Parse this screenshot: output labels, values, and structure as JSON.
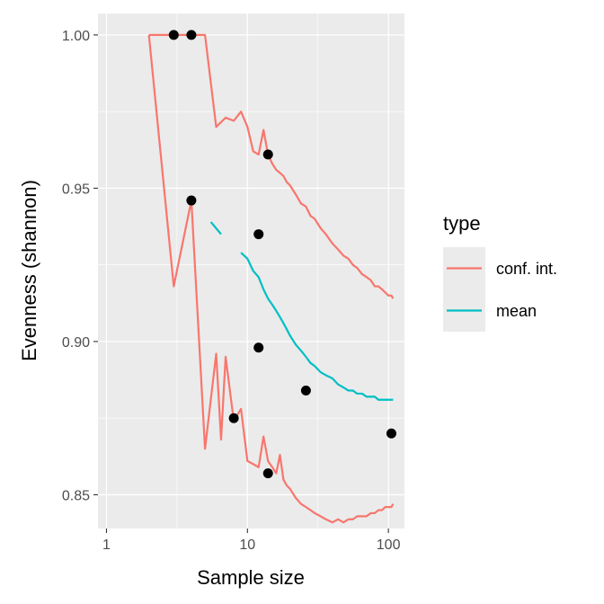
{
  "chart_data": {
    "type": "line",
    "xlabel": "Sample size",
    "ylabel": "Evenness (shannon)",
    "x_scale": "log10",
    "xlim": [
      0.87,
      130
    ],
    "ylim": [
      0.839,
      1.007
    ],
    "x_ticks": [
      1,
      10,
      100
    ],
    "x_tick_labels": [
      "1",
      "10",
      "100"
    ],
    "y_ticks": [
      0.85,
      0.9,
      0.95,
      1.0
    ],
    "y_tick_labels": [
      "0.85",
      "0.90",
      "0.95",
      "1.00"
    ],
    "grid": true,
    "legend": {
      "title": "type",
      "position": "right",
      "entries": [
        {
          "label": "conf. int.",
          "color": "#F8766D"
        },
        {
          "label": "mean",
          "color": "#00BFC4"
        }
      ]
    },
    "series": [
      {
        "name": "conf. int.",
        "color": "#F8766D",
        "x": [
          2,
          3,
          4,
          5,
          6,
          7,
          8,
          9,
          10,
          11,
          12,
          13,
          14,
          15,
          16,
          17,
          18,
          19,
          20,
          22,
          24,
          26,
          28,
          30,
          33,
          36,
          40,
          44,
          48,
          52,
          56,
          60,
          65,
          70,
          75,
          80,
          85,
          90,
          95,
          100,
          105,
          108
        ],
        "y": [
          1.0,
          1.0,
          1.0,
          1.0,
          0.97,
          0.973,
          0.972,
          0.975,
          0.97,
          0.962,
          0.961,
          0.969,
          0.961,
          0.958,
          0.956,
          0.955,
          0.954,
          0.952,
          0.951,
          0.948,
          0.945,
          0.944,
          0.941,
          0.94,
          0.937,
          0.935,
          0.932,
          0.93,
          0.928,
          0.927,
          0.925,
          0.924,
          0.922,
          0.921,
          0.92,
          0.918,
          0.918,
          0.917,
          0.916,
          0.915,
          0.915,
          0.914
        ]
      },
      {
        "name": "",
        "color": "#F8766D",
        "x": [
          2,
          3,
          4,
          5,
          6,
          6.5,
          7,
          8,
          9,
          10,
          11,
          12,
          13,
          14,
          15,
          16,
          17,
          18,
          19,
          20,
          22,
          24,
          26,
          28,
          30,
          33,
          36,
          40,
          44,
          48,
          52,
          56,
          60,
          65,
          70,
          75,
          80,
          85,
          90,
          95,
          100,
          105,
          108
        ],
        "y": [
          1.0,
          0.918,
          0.946,
          0.865,
          0.896,
          0.868,
          0.895,
          0.874,
          0.878,
          0.861,
          0.86,
          0.859,
          0.869,
          0.861,
          0.859,
          0.857,
          0.863,
          0.855,
          0.853,
          0.852,
          0.849,
          0.847,
          0.846,
          0.845,
          0.844,
          0.843,
          0.842,
          0.841,
          0.842,
          0.841,
          0.842,
          0.842,
          0.843,
          0.843,
          0.843,
          0.844,
          0.844,
          0.845,
          0.845,
          0.846,
          0.846,
          0.846,
          0.847
        ]
      },
      {
        "name": "mean",
        "color": "#00BFC4",
        "x": [
          5.5,
          6.5
        ],
        "y": [
          0.939,
          0.935
        ]
      },
      {
        "name": "",
        "color": "#00BFC4",
        "x": [
          9,
          10,
          11,
          12,
          13,
          14,
          15,
          16,
          17,
          18,
          19,
          20,
          22,
          24,
          26,
          28,
          30,
          33,
          36,
          40,
          44,
          48,
          52,
          56,
          60,
          65,
          70,
          75,
          80,
          85,
          90,
          95,
          100,
          105,
          108
        ],
        "y": [
          0.929,
          0.927,
          0.923,
          0.921,
          0.917,
          0.914,
          0.912,
          0.91,
          0.908,
          0.906,
          0.904,
          0.902,
          0.899,
          0.897,
          0.895,
          0.893,
          0.892,
          0.89,
          0.889,
          0.888,
          0.886,
          0.885,
          0.884,
          0.884,
          0.883,
          0.883,
          0.882,
          0.882,
          0.882,
          0.881,
          0.881,
          0.881,
          0.881,
          0.881,
          0.881
        ]
      }
    ],
    "points": {
      "color": "#000000",
      "x": [
        3,
        4,
        4,
        8,
        12,
        12,
        14,
        14,
        26,
        105
      ],
      "y": [
        1.0,
        1.0,
        0.946,
        0.875,
        0.935,
        0.898,
        0.961,
        0.857,
        0.884,
        0.87
      ]
    }
  }
}
